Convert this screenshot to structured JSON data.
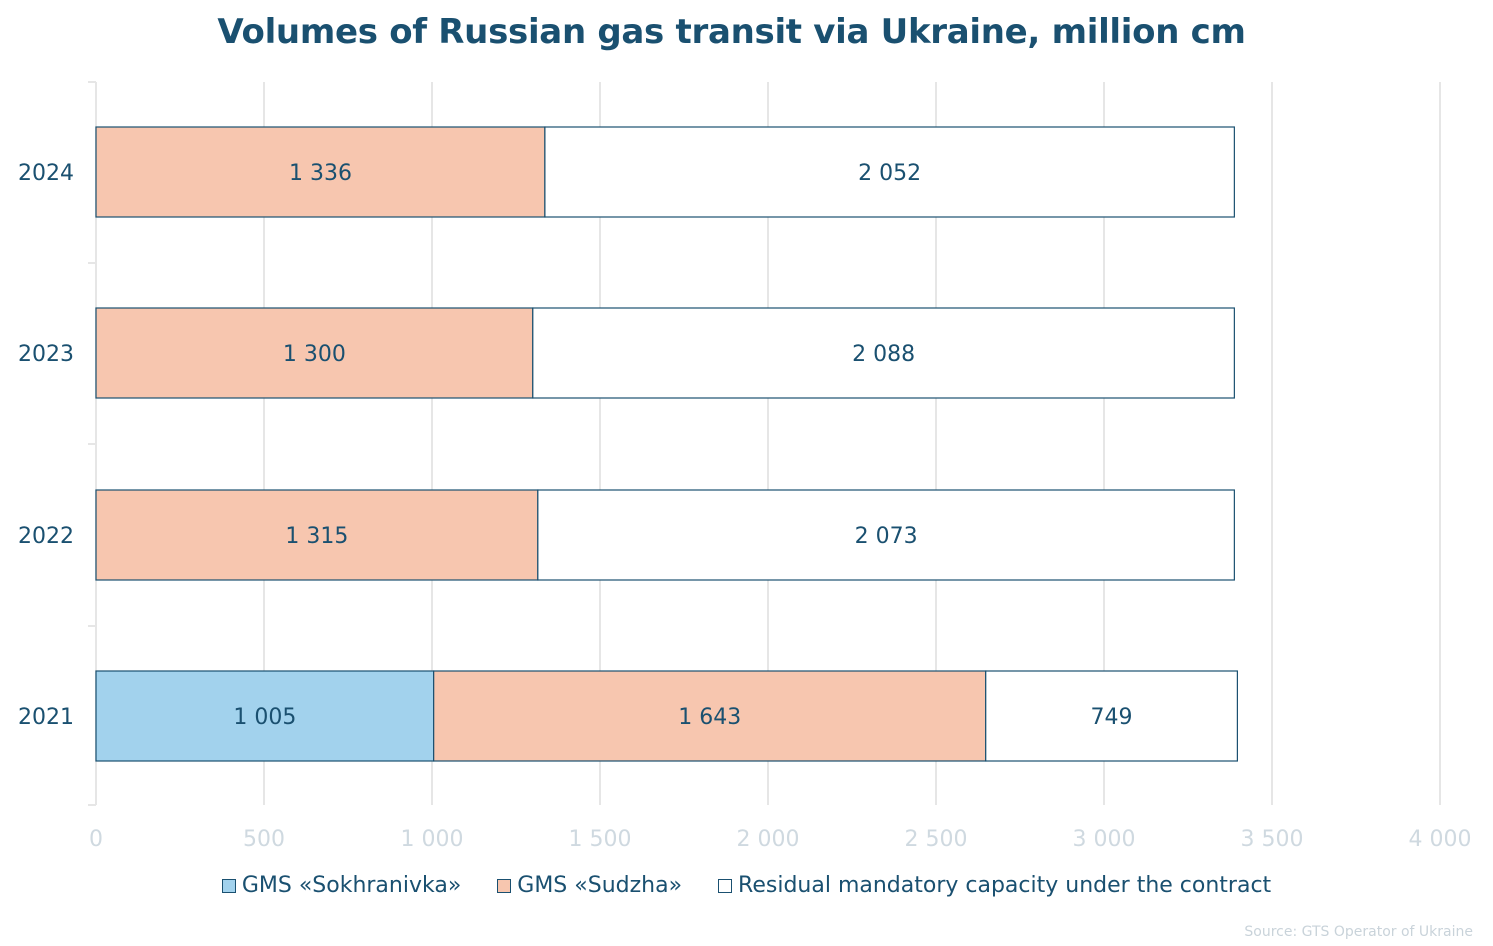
{
  "chart_data": {
    "type": "bar",
    "orientation": "horizontal",
    "stacked": true,
    "title": "Volumes of Russian gas transit via Ukraine, million cm",
    "categories": [
      "2024",
      "2023",
      "2022",
      "2021"
    ],
    "series": [
      {
        "name": "GMS «Sokhranivka»",
        "color": "#a2d2ed",
        "values": [
          0,
          0,
          0,
          1005
        ],
        "labels": [
          "",
          "",
          "",
          "1 005"
        ]
      },
      {
        "name": "GMS «Sudzha»",
        "color": "#f7c6af",
        "values": [
          1336,
          1300,
          1315,
          1643
        ],
        "labels": [
          "1 336",
          "1 300",
          "1 315",
          "1 643"
        ]
      },
      {
        "name": "Residual mandatory capacity under the contract",
        "color": "#ffffff",
        "values": [
          2052,
          2088,
          2073,
          749
        ],
        "labels": [
          "2 052",
          "2 088",
          "2 073",
          "749"
        ]
      }
    ],
    "xlim": [
      0,
      4000
    ],
    "xticks": [
      0,
      500,
      1000,
      1500,
      2000,
      2500,
      3000,
      3500,
      4000
    ],
    "xtick_labels": [
      "0",
      "500",
      "1 000",
      "1 500",
      "2 000",
      "2 500",
      "3 000",
      "3 500",
      "4 000"
    ],
    "grid": true,
    "legend_position": "bottom",
    "source": "Source: GTS Operator of Ukraine"
  },
  "colors": {
    "text": "#1a5070",
    "border": "#1a5070",
    "grid": "#e6e6e6",
    "tick": "#cfd9e0"
  }
}
